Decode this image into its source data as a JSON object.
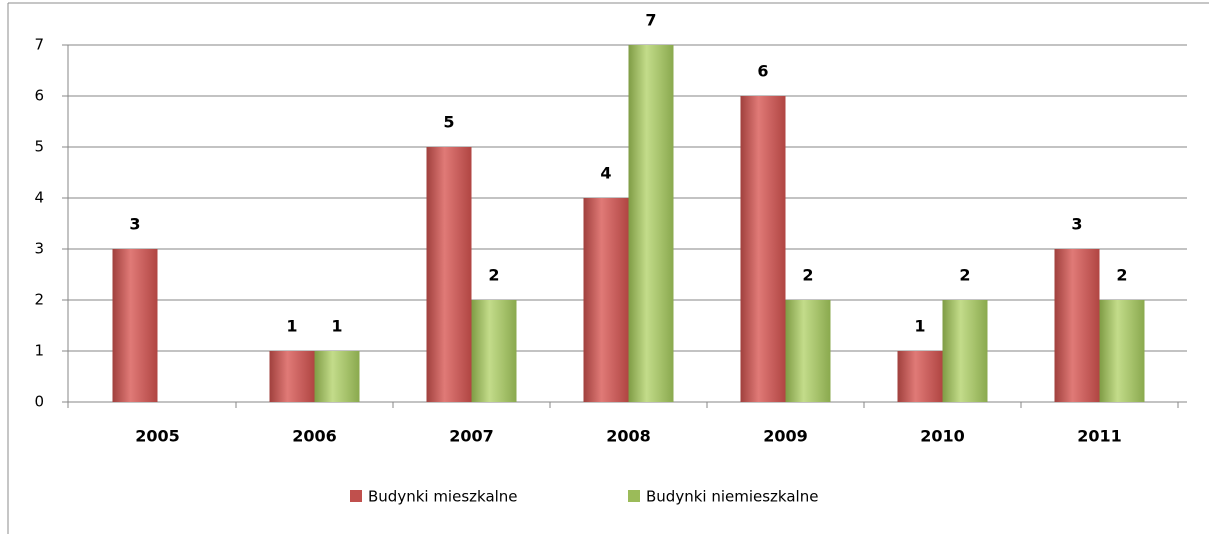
{
  "chart_data": {
    "type": "bar",
    "categories": [
      "2005",
      "2006",
      "2007",
      "2008",
      "2009",
      "2010",
      "2011"
    ],
    "series": [
      {
        "name": "Budynki mieszkalne",
        "color": "#c0504d",
        "values": [
          3,
          1,
          5,
          4,
          6,
          1,
          3
        ]
      },
      {
        "name": "Budynki niemieszkalne",
        "color": "#9bbb59",
        "values": [
          null,
          1,
          2,
          7,
          2,
          2,
          2
        ]
      }
    ],
    "ylim": [
      0,
      7
    ],
    "yticks": [
      0,
      1,
      2,
      3,
      4,
      5,
      6,
      7
    ],
    "grid": true,
    "legend": "bottom"
  }
}
